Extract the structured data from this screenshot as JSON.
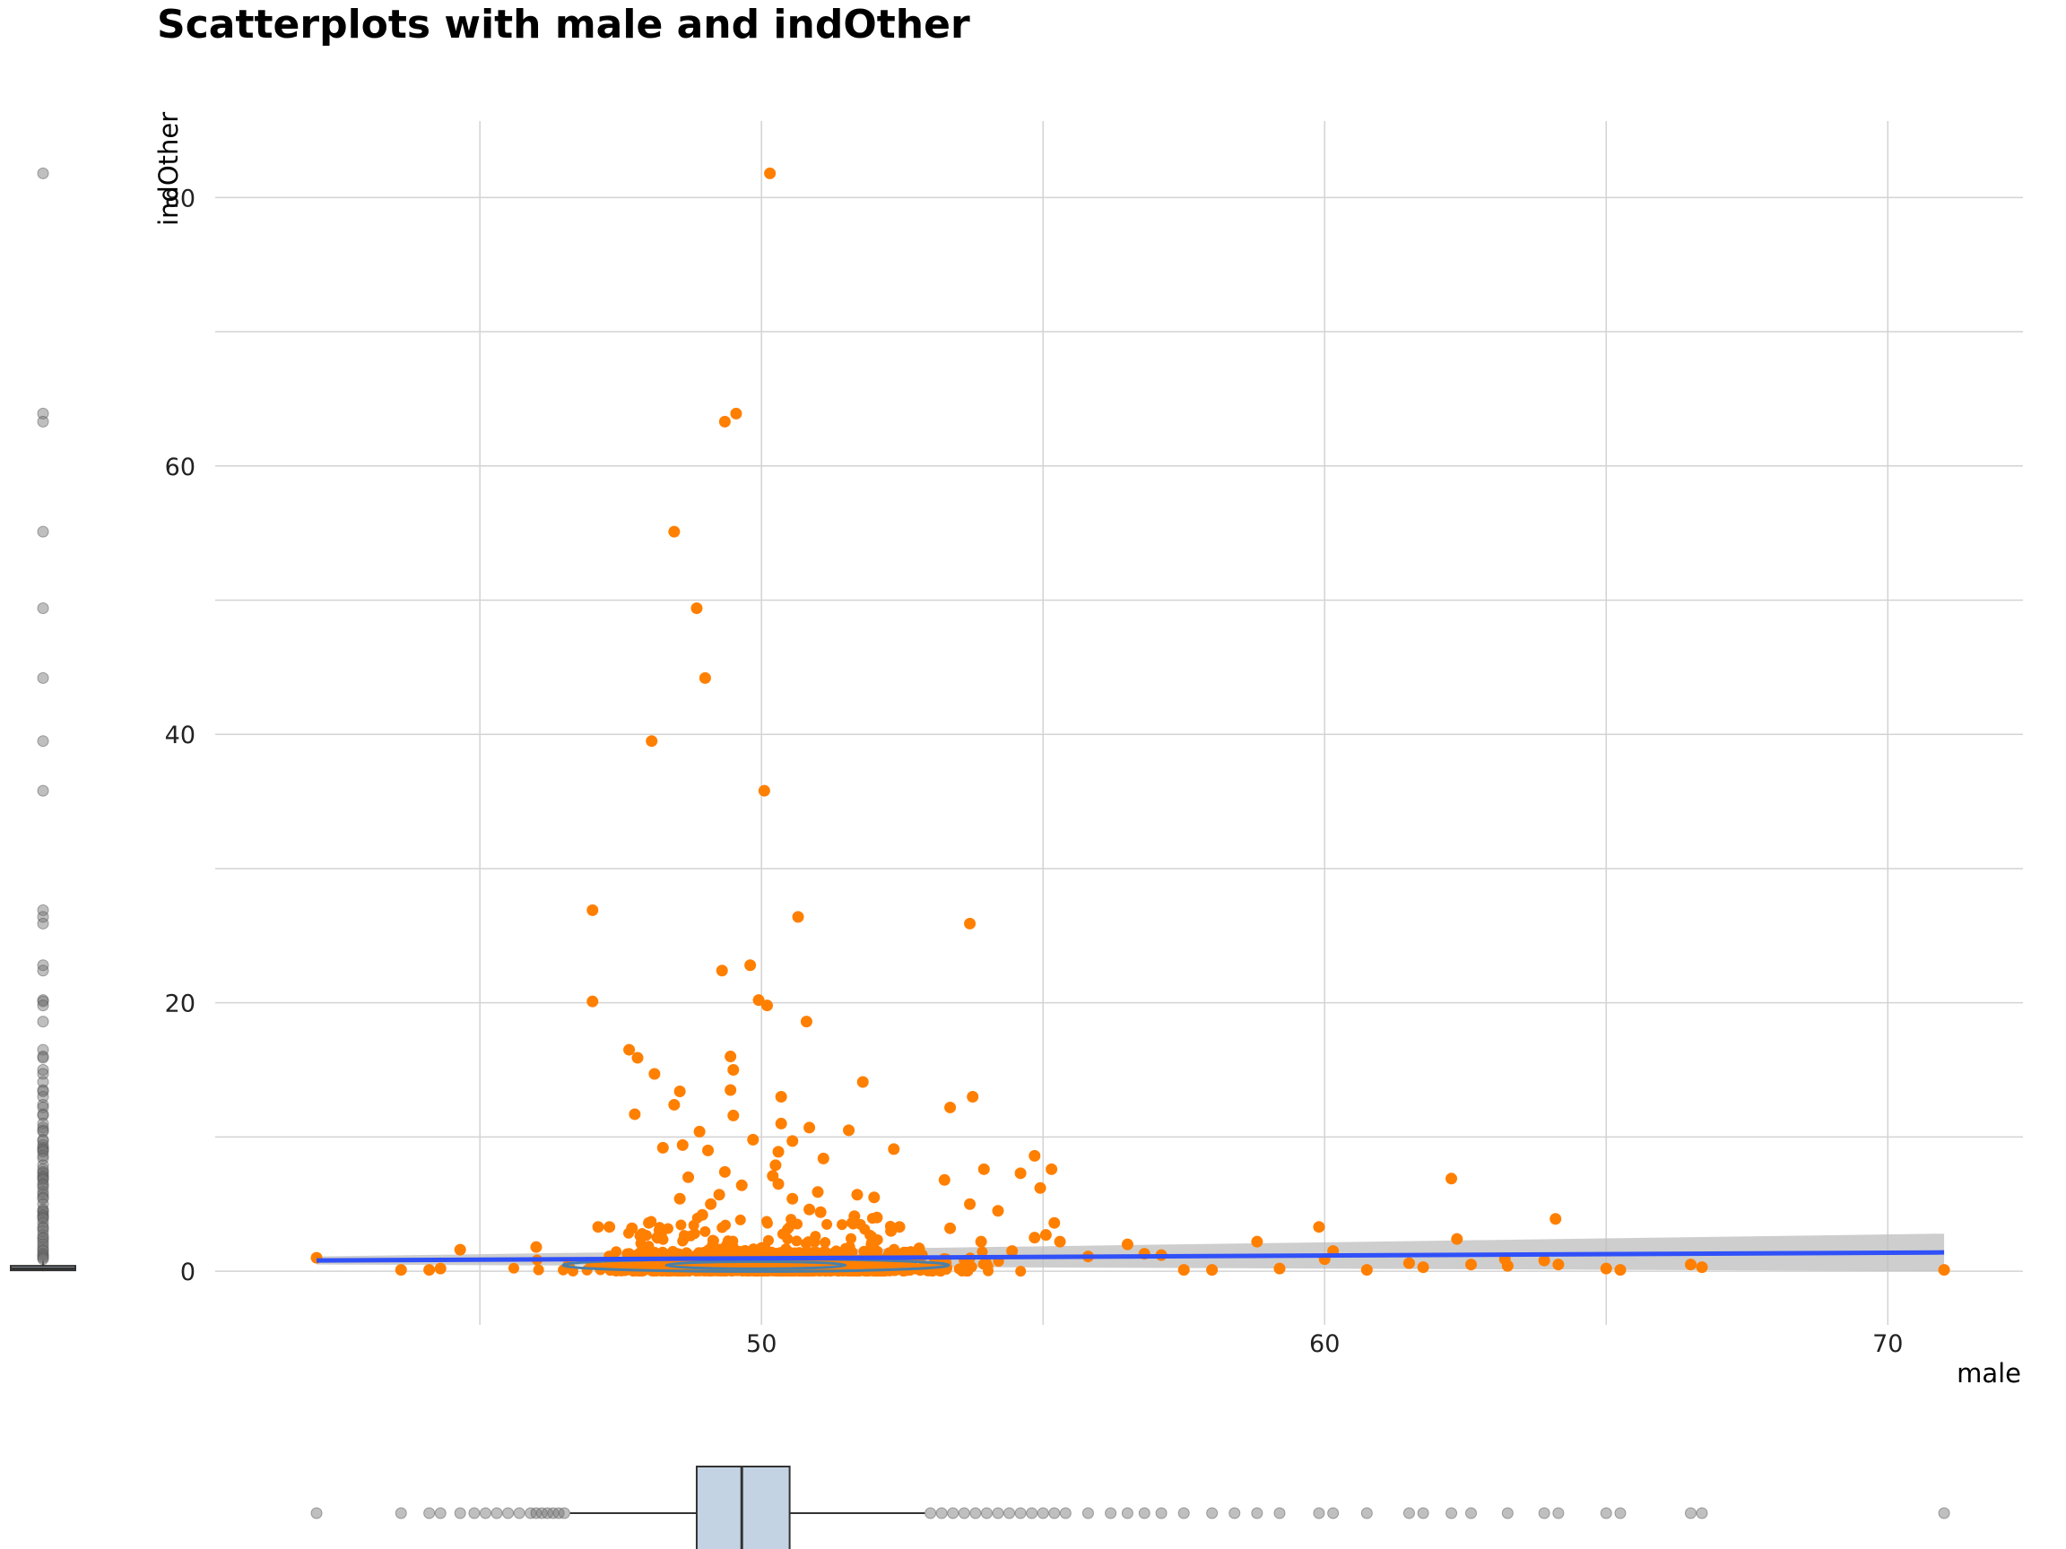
{
  "chart_data": {
    "type": "scatter",
    "title": "Scatterplots with male and indOther",
    "xlabel": "male",
    "ylabel": "indOther",
    "xlim": [
      40.3,
      72.4
    ],
    "ylim": [
      -4,
      85.7
    ],
    "x_ticks": [
      50,
      60,
      70
    ],
    "y_ticks": [
      0,
      20,
      40,
      60,
      80
    ],
    "grid": true,
    "colors": {
      "points": "#FF7F00",
      "fit_line": "#3050F8",
      "confidence_band": "#BEBEBE",
      "boxplot_fill": "#C3D3E3",
      "boxplot_stroke": "#333333",
      "marginal_points": "#707070",
      "density_contour": "#4A7FA8"
    },
    "regression": {
      "x": [
        42.1,
        71.0
      ],
      "y": [
        0.8,
        1.4
      ],
      "ci_low": [
        0.5,
        0.0
      ],
      "ci_high": [
        1.1,
        2.8
      ]
    },
    "outlier_points": [
      {
        "x": 50.15,
        "y": 81.8
      },
      {
        "x": 49.55,
        "y": 63.9
      },
      {
        "x": 49.35,
        "y": 63.3
      },
      {
        "x": 48.45,
        "y": 55.1
      },
      {
        "x": 48.85,
        "y": 49.4
      },
      {
        "x": 49.0,
        "y": 44.2
      },
      {
        "x": 48.05,
        "y": 39.5
      },
      {
        "x": 50.05,
        "y": 35.8
      },
      {
        "x": 47.0,
        "y": 26.9
      },
      {
        "x": 50.65,
        "y": 26.4
      },
      {
        "x": 53.7,
        "y": 25.9
      },
      {
        "x": 49.8,
        "y": 22.8
      },
      {
        "x": 49.3,
        "y": 22.4
      },
      {
        "x": 47.0,
        "y": 20.1
      },
      {
        "x": 49.95,
        "y": 20.2
      },
      {
        "x": 50.1,
        "y": 19.8
      },
      {
        "x": 50.8,
        "y": 18.6
      },
      {
        "x": 47.65,
        "y": 16.5
      },
      {
        "x": 47.8,
        "y": 15.9
      },
      {
        "x": 49.45,
        "y": 16.0
      },
      {
        "x": 49.5,
        "y": 15.0
      },
      {
        "x": 48.1,
        "y": 14.7
      },
      {
        "x": 51.8,
        "y": 14.1
      },
      {
        "x": 48.55,
        "y": 13.4
      },
      {
        "x": 49.45,
        "y": 13.5
      },
      {
        "x": 48.45,
        "y": 12.4
      },
      {
        "x": 53.75,
        "y": 13.0
      },
      {
        "x": 53.35,
        "y": 12.2
      },
      {
        "x": 50.35,
        "y": 13.0
      },
      {
        "x": 47.75,
        "y": 11.7
      },
      {
        "x": 49.5,
        "y": 11.6
      },
      {
        "x": 50.35,
        "y": 11.0
      },
      {
        "x": 50.85,
        "y": 10.7
      },
      {
        "x": 51.55,
        "y": 10.5
      },
      {
        "x": 48.9,
        "y": 10.4
      },
      {
        "x": 49.85,
        "y": 9.8
      },
      {
        "x": 50.55,
        "y": 9.7
      },
      {
        "x": 48.6,
        "y": 9.4
      },
      {
        "x": 48.25,
        "y": 9.2
      },
      {
        "x": 52.35,
        "y": 9.1
      },
      {
        "x": 49.05,
        "y": 9.0
      },
      {
        "x": 50.3,
        "y": 8.9
      },
      {
        "x": 54.85,
        "y": 8.6
      },
      {
        "x": 51.1,
        "y": 8.4
      },
      {
        "x": 50.25,
        "y": 7.9
      },
      {
        "x": 53.95,
        "y": 7.6
      },
      {
        "x": 55.15,
        "y": 7.6
      },
      {
        "x": 49.35,
        "y": 7.4
      },
      {
        "x": 54.6,
        "y": 7.3
      },
      {
        "x": 48.7,
        "y": 7.0
      },
      {
        "x": 50.2,
        "y": 7.1
      },
      {
        "x": 53.25,
        "y": 6.8
      },
      {
        "x": 49.65,
        "y": 6.4
      },
      {
        "x": 50.3,
        "y": 6.5
      },
      {
        "x": 54.95,
        "y": 6.2
      },
      {
        "x": 51.0,
        "y": 5.9
      },
      {
        "x": 51.7,
        "y": 5.7
      },
      {
        "x": 49.25,
        "y": 5.7
      },
      {
        "x": 48.55,
        "y": 5.4
      },
      {
        "x": 50.55,
        "y": 5.4
      },
      {
        "x": 52.0,
        "y": 5.5
      },
      {
        "x": 53.7,
        "y": 5.0
      },
      {
        "x": 49.1,
        "y": 5.0
      },
      {
        "x": 50.85,
        "y": 4.6
      },
      {
        "x": 54.2,
        "y": 4.5
      },
      {
        "x": 51.05,
        "y": 4.4
      },
      {
        "x": 48.95,
        "y": 4.2
      },
      {
        "x": 51.65,
        "y": 4.1
      },
      {
        "x": 52.05,
        "y": 4.0
      },
      {
        "x": 48.0,
        "y": 3.6
      },
      {
        "x": 55.2,
        "y": 3.6
      },
      {
        "x": 47.1,
        "y": 3.3
      },
      {
        "x": 47.7,
        "y": 3.2
      },
      {
        "x": 47.3,
        "y": 3.3
      },
      {
        "x": 52.45,
        "y": 3.3
      },
      {
        "x": 53.35,
        "y": 3.2
      },
      {
        "x": 59.9,
        "y": 3.3
      },
      {
        "x": 64.1,
        "y": 3.9
      },
      {
        "x": 62.25,
        "y": 6.9
      },
      {
        "x": 52.3,
        "y": 3.0
      },
      {
        "x": 54.85,
        "y": 2.5
      },
      {
        "x": 55.05,
        "y": 2.7
      },
      {
        "x": 53.9,
        "y": 2.2
      },
      {
        "x": 55.3,
        "y": 2.2
      },
      {
        "x": 58.8,
        "y": 2.2
      },
      {
        "x": 62.35,
        "y": 2.4
      },
      {
        "x": 56.5,
        "y": 2.0
      },
      {
        "x": 46.0,
        "y": 1.8
      },
      {
        "x": 44.65,
        "y": 1.6
      },
      {
        "x": 60.15,
        "y": 1.5
      },
      {
        "x": 52.8,
        "y": 1.7
      },
      {
        "x": 54.45,
        "y": 1.5
      },
      {
        "x": 56.8,
        "y": 1.3
      },
      {
        "x": 57.1,
        "y": 1.2
      },
      {
        "x": 55.8,
        "y": 1.1
      },
      {
        "x": 42.1,
        "y": 1.0
      },
      {
        "x": 60.0,
        "y": 0.9
      },
      {
        "x": 63.2,
        "y": 0.9
      },
      {
        "x": 63.9,
        "y": 0.8
      },
      {
        "x": 61.5,
        "y": 0.6
      },
      {
        "x": 62.6,
        "y": 0.5
      },
      {
        "x": 63.25,
        "y": 0.4
      },
      {
        "x": 64.15,
        "y": 0.5
      },
      {
        "x": 66.5,
        "y": 0.5
      },
      {
        "x": 66.7,
        "y": 0.3
      },
      {
        "x": 61.75,
        "y": 0.3
      },
      {
        "x": 65.0,
        "y": 0.2
      },
      {
        "x": 65.25,
        "y": 0.1
      },
      {
        "x": 60.75,
        "y": 0.1
      },
      {
        "x": 71.0,
        "y": 0.1
      },
      {
        "x": 43.6,
        "y": 0.1
      },
      {
        "x": 44.1,
        "y": 0.1
      },
      {
        "x": 44.3,
        "y": 0.2
      },
      {
        "x": 57.5,
        "y": 0.1
      },
      {
        "x": 58.0,
        "y": 0.1
      },
      {
        "x": 59.2,
        "y": 0.2
      }
    ],
    "dense_cluster": {
      "x_range": [
        44.5,
        58.8
      ],
      "y_range": [
        0.0,
        1.5
      ],
      "core_x_range": [
        47.0,
        53.5
      ],
      "core_y_range": [
        0.0,
        4.0
      ]
    },
    "marginal_y_boxplot": {
      "median": 0.2,
      "q1": 0.1,
      "q3": 0.4,
      "whisker_low": 0.0,
      "whisker_high": 0.8,
      "outliers": [
        81.8,
        63.9,
        63.3,
        55.1,
        49.4,
        44.2,
        39.5,
        35.8,
        26.9,
        26.4,
        25.9,
        22.8,
        22.4,
        20.2,
        20.1,
        19.8,
        18.6,
        16.5,
        16.0,
        15.9,
        15.0,
        14.7,
        14.1,
        13.5,
        13.4,
        13.0,
        12.4,
        12.2,
        11.7,
        11.6,
        11.0,
        10.7,
        10.5,
        10.4,
        9.8,
        9.7,
        9.4,
        9.2,
        9.1,
        9.0,
        8.9,
        8.6,
        8.4,
        7.9,
        7.6,
        7.4,
        7.3,
        7.1,
        7.0,
        6.9,
        6.8,
        6.5,
        6.4,
        6.2,
        5.9,
        5.7,
        5.5,
        5.4,
        5.0,
        4.6,
        4.5,
        4.4,
        4.2,
        4.1,
        4.0,
        3.9,
        3.6,
        3.3,
        3.2,
        3.0,
        2.7,
        2.5,
        2.4,
        2.2,
        2.0,
        1.8,
        1.6,
        1.5,
        1.3,
        1.2,
        1.1,
        1.0,
        0.9
      ]
    },
    "marginal_x_boxplot": {
      "median": 49.65,
      "q1": 48.85,
      "q3": 50.5,
      "whisker_low": 46.6,
      "whisker_high": 52.9,
      "outliers": [
        42.1,
        43.6,
        44.1,
        44.3,
        44.65,
        44.9,
        45.1,
        45.3,
        45.5,
        45.7,
        45.9,
        46.0,
        46.1,
        46.2,
        46.3,
        46.4,
        46.5,
        53.0,
        53.2,
        53.4,
        53.6,
        53.8,
        54.0,
        54.2,
        54.4,
        54.6,
        54.8,
        55.0,
        55.2,
        55.4,
        55.8,
        56.2,
        56.5,
        56.8,
        57.1,
        57.5,
        58.0,
        58.4,
        58.8,
        59.2,
        59.9,
        60.15,
        60.75,
        61.5,
        61.75,
        62.25,
        62.6,
        63.25,
        63.9,
        64.15,
        65.0,
        65.25,
        66.5,
        66.7,
        71.0
      ]
    }
  }
}
